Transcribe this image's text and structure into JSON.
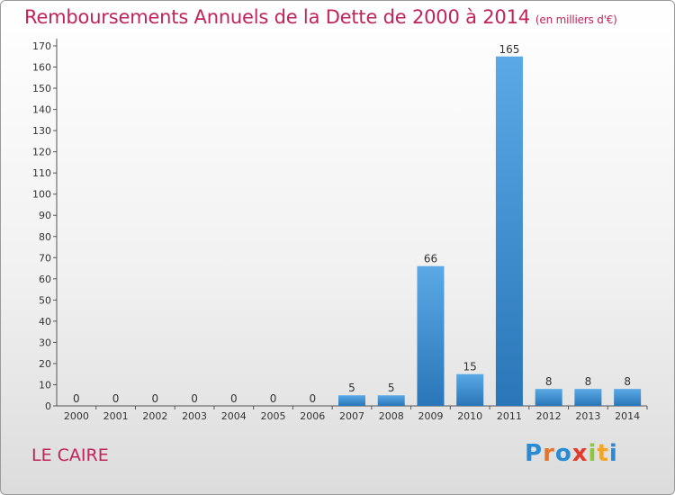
{
  "title": "Remboursements Annuels de la Dette de 2000 à 2014",
  "unit": "(en milliers d'€)",
  "city": "LE CAIRE",
  "logo": {
    "text": "Proxiti",
    "letters": [
      {
        "ch": "P",
        "color": "#2a8ad4"
      },
      {
        "ch": "r",
        "color": "#e8742a"
      },
      {
        "ch": "o",
        "color": "#2a8ad4"
      },
      {
        "ch": "x",
        "color": "#e23b2e"
      },
      {
        "ch": "i",
        "color": "#8cc63f"
      },
      {
        "ch": "t",
        "color": "#f2a623"
      },
      {
        "ch": "i",
        "color": "#2a8ad4"
      }
    ]
  },
  "colors": {
    "title": "#c0245b",
    "bar_light": "#5aa9e6",
    "bar_dark": "#2a76b8"
  },
  "chart_data": {
    "type": "bar",
    "categories": [
      "2000",
      "2001",
      "2002",
      "2003",
      "2004",
      "2005",
      "2006",
      "2007",
      "2008",
      "2009",
      "2010",
      "2011",
      "2012",
      "2013",
      "2014"
    ],
    "values": [
      0,
      0,
      0,
      0,
      0,
      0,
      0,
      5,
      5,
      66,
      15,
      165,
      8,
      8,
      8
    ],
    "ylim": [
      0,
      170
    ],
    "yticks": [
      0,
      10,
      20,
      30,
      40,
      50,
      60,
      70,
      80,
      90,
      100,
      110,
      120,
      130,
      140,
      150,
      160,
      170
    ],
    "grid": false,
    "legend": "none",
    "title": "Remboursements Annuels de la Dette de 2000 à 2014",
    "xlabel": "",
    "ylabel": ""
  }
}
